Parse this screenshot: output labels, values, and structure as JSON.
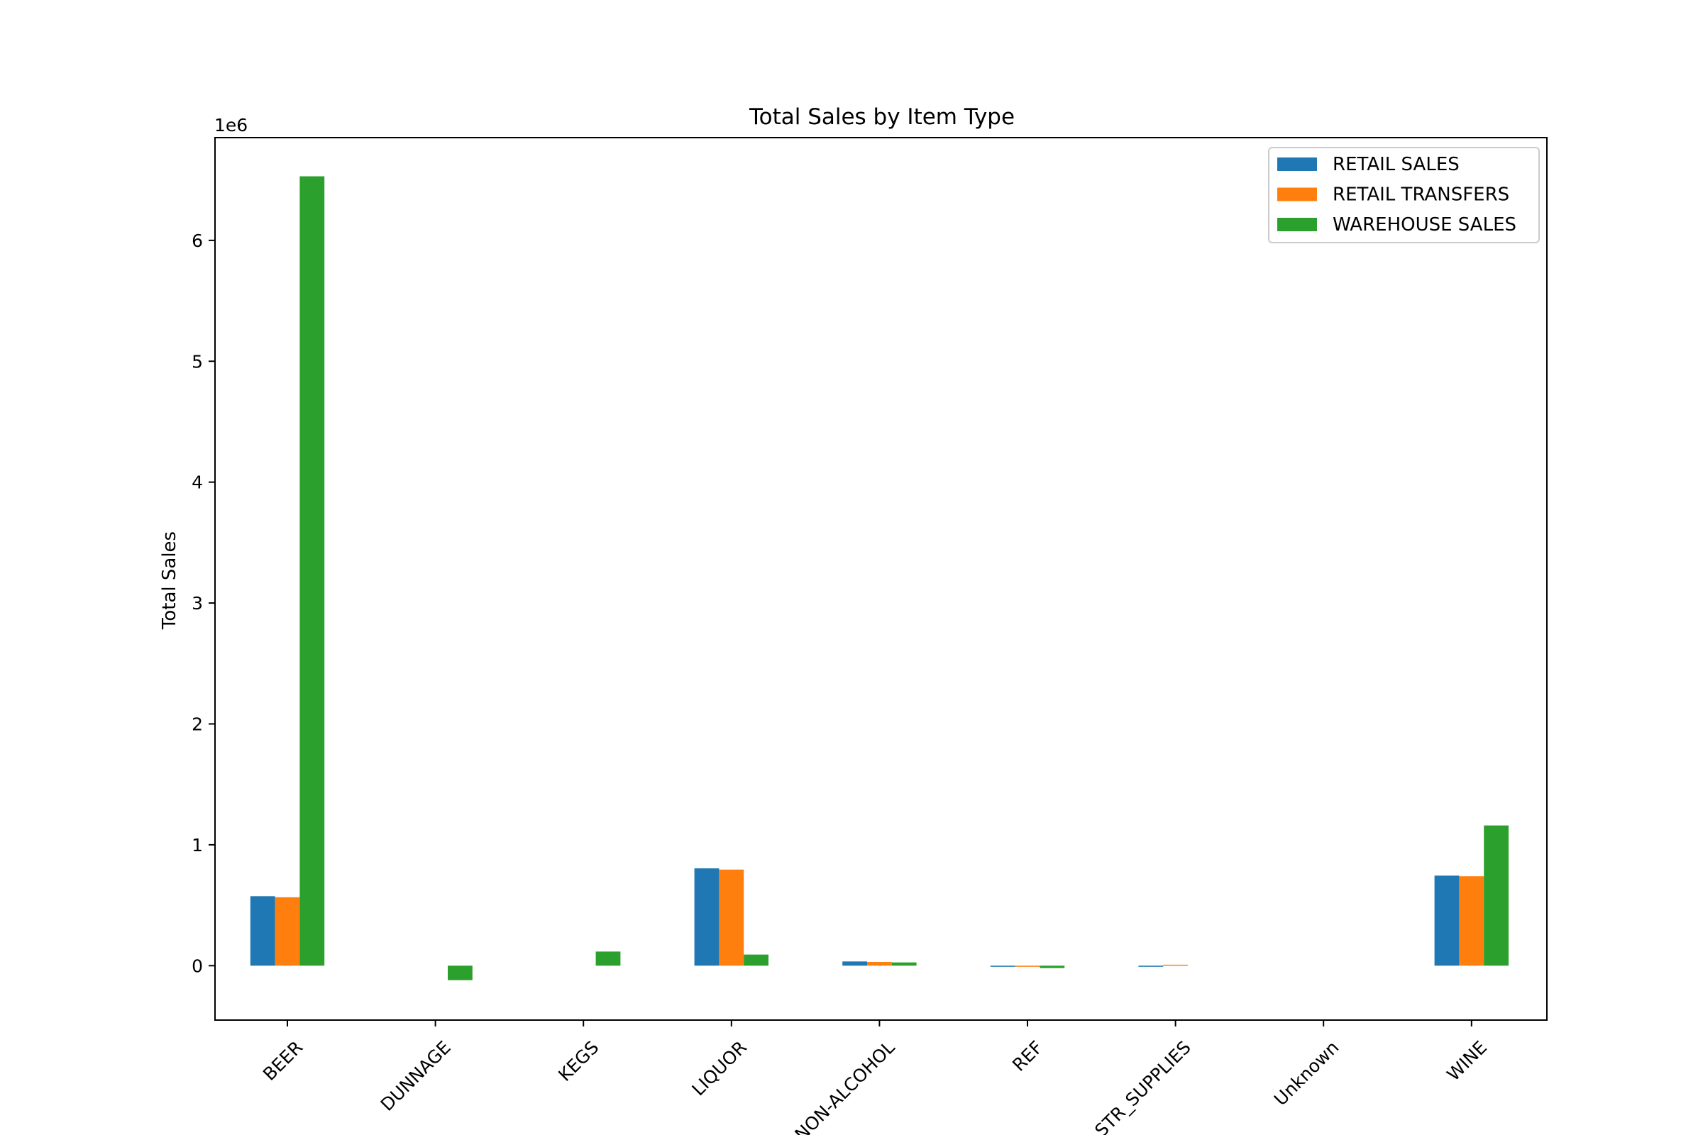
{
  "chart_data": {
    "type": "bar",
    "title": "Total Sales by Item Type",
    "xlabel": "",
    "ylabel": "Total Sales",
    "y_offset_label": "1e6",
    "y_scale": 1000000,
    "ylim": [
      -450000,
      6850000
    ],
    "yticks": [
      0,
      1000000,
      2000000,
      3000000,
      4000000,
      5000000,
      6000000
    ],
    "ytick_labels": [
      "0",
      "1",
      "2",
      "3",
      "4",
      "5",
      "6"
    ],
    "categories": [
      "BEER",
      "DUNNAGE",
      "KEGS",
      "LIQUOR",
      "NON-ALCOHOL",
      "REF",
      "STR_SUPPLIES",
      "Unknown",
      "WINE"
    ],
    "series": [
      {
        "name": "RETAIL SALES",
        "color": "#1f77b4",
        "values": [
          575000,
          0,
          0,
          805000,
          35000,
          -8000,
          -5000,
          0,
          745000
        ]
      },
      {
        "name": "RETAIL TRANSFERS",
        "color": "#ff7f0e",
        "values": [
          566000,
          0,
          0,
          795000,
          31000,
          -5000,
          8000,
          0,
          740000
        ]
      },
      {
        "name": "WAREHOUSE SALES",
        "color": "#2ca02c",
        "values": [
          6530000,
          -120000,
          117000,
          92000,
          27000,
          -20000,
          0,
          0,
          1160000
        ]
      }
    ],
    "legend_position": "upper-right",
    "grid": false
  }
}
